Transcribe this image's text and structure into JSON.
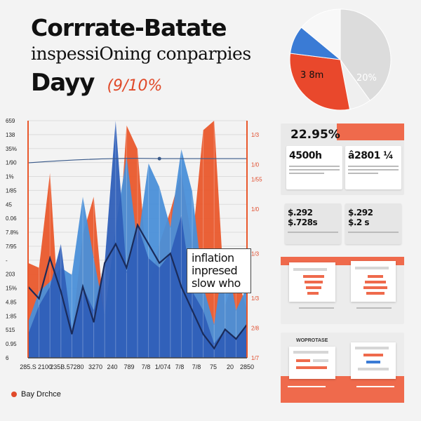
{
  "header": {
    "line1": "Corrrate-Batate",
    "line2": "inspessiOning conparpies",
    "line3": "Dayy",
    "line3_pct": "(9/10%"
  },
  "callout": {
    "line1": "inflation",
    "line2": "inpresed",
    "line3": "slow who"
  },
  "footer": {
    "brand": "Bay Drchce"
  },
  "pie": {
    "label_left": "3 8m",
    "label_right": "20%",
    "slices": [
      {
        "value": 40,
        "color": "#dcdcdc"
      },
      {
        "value": 7,
        "color": "#efefef"
      },
      {
        "value": 30,
        "color": "#e9482c"
      },
      {
        "value": 9,
        "color": "#3a7bd5"
      },
      {
        "value": 14,
        "color": "#f8f8f8"
      }
    ]
  },
  "panels": {
    "p1": {
      "header_value": "22.95%",
      "card1_value": "4500h",
      "card2_value": "â2801 ¼"
    },
    "p2": {
      "card1_top": "$.292",
      "card1_bottom": "$.728s",
      "card2_top": "$.292",
      "card2_bottom": "$.2 s"
    },
    "p4": {
      "title": "WOPROTASE"
    }
  },
  "chart_data": {
    "type": "area",
    "y_left_ticks": [
      "659",
      "138",
      "35%",
      "1/90",
      "1%",
      "1/85",
      "45",
      "0.06",
      "7.8%",
      "7/95",
      "-",
      "203",
      "15%",
      "4.85",
      "1:85",
      "515",
      "0.95",
      "6"
    ],
    "y_right_ticks": [
      "1/3",
      "",
      "1/0",
      "1/55",
      "",
      "1/0",
      "",
      "",
      "1/3",
      "",
      "",
      "1/3",
      "",
      "2/8",
      "",
      "1/7"
    ],
    "x_ticks": [
      "285.S",
      "2100",
      "235B.57",
      "280",
      "3270",
      "240",
      "789",
      "7/8",
      "1/074",
      "7/8",
      "7/8",
      "75",
      "20",
      "2850"
    ],
    "series": [
      {
        "color": "#e9582c",
        "values": [
          40,
          38,
          78,
          5,
          10,
          52,
          68,
          15,
          28,
          98,
          88,
          28,
          48,
          62,
          78,
          48,
          96,
          100,
          22,
          36,
          20
        ]
      },
      {
        "color": "#4a8fd8",
        "values": [
          15,
          28,
          32,
          38,
          35,
          68,
          42,
          18,
          55,
          85,
          48,
          82,
          72,
          55,
          88,
          70,
          30,
          14,
          46,
          20,
          30
        ]
      },
      {
        "color": "#2f5fb8",
        "values": [
          10,
          22,
          30,
          48,
          12,
          30,
          20,
          40,
          100,
          36,
          56,
          42,
          38,
          44,
          60,
          28,
          20,
          6,
          12,
          8,
          14
        ]
      }
    ],
    "line_series": {
      "color": "#1a2b5a",
      "values": [
        30,
        25,
        42,
        28,
        10,
        30,
        15,
        40,
        48,
        38,
        56,
        48,
        40,
        44,
        30,
        20,
        10,
        4,
        12,
        8,
        14
      ]
    },
    "ref_line_value": 84,
    "ylim": [
      0,
      100
    ]
  }
}
